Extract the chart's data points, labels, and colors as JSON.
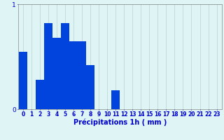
{
  "title": "",
  "xlabel": "Précipitations 1h ( mm )",
  "values": [
    0.55,
    0.0,
    0.28,
    0.82,
    0.68,
    0.82,
    0.65,
    0.65,
    0.42,
    0.0,
    0.0,
    0.18,
    0.0,
    0.0,
    0.0,
    0.0,
    0.0,
    0.0,
    0.0,
    0.0,
    0.0,
    0.0,
    0.0,
    0.0
  ],
  "bar_color": "#0044dd",
  "background_color": "#dff5f5",
  "grid_color": "#c0d8d8",
  "axis_color": "#888888",
  "text_color": "#0000cc",
  "ylim": [
    0,
    1.0
  ],
  "yticks": [
    0,
    1
  ],
  "num_bars": 24,
  "bar_width": 1.0,
  "xlabel_fontsize": 7,
  "tick_fontsize": 5.5
}
